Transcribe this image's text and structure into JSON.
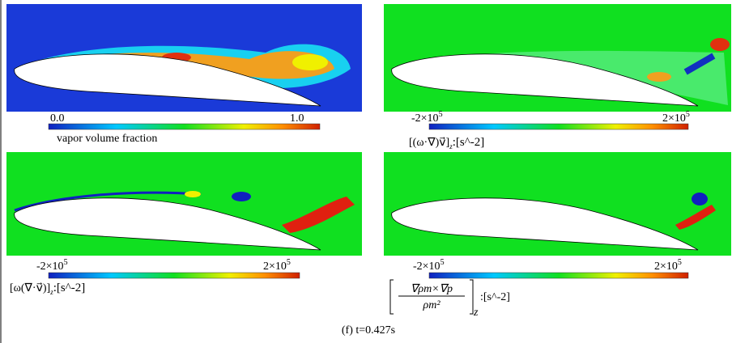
{
  "panels": [
    {
      "colorbar": {
        "min": "0.0",
        "max": "1.0"
      },
      "label": "vapor volume fraction"
    },
    {
      "colorbar": {
        "min": {
          "base": "-2×10",
          "exp": "5"
        },
        "max": {
          "base": "2×10",
          "exp": "5"
        }
      },
      "label": {
        "term": "[(ω·∇)v⃗]",
        "sub": "z",
        "unit": ":[s^-2]"
      }
    },
    {
      "colorbar": {
        "min": {
          "base": "-2×10",
          "exp": "5"
        },
        "max": {
          "base": "2×10",
          "exp": "5"
        }
      },
      "label": {
        "term": "[ω(∇·v⃗)]",
        "sub": "z",
        "unit": ":[s^-2]"
      }
    },
    {
      "colorbar": {
        "min": {
          "base": "-2×10",
          "exp": "5"
        },
        "max": {
          "base": "2×10",
          "exp": "5"
        }
      },
      "label": {
        "numerator": "∇ρm×∇p",
        "denominator": "ρm²",
        "sub": "z",
        "unit": ":[s^-2]"
      }
    }
  ],
  "caption": "(f) t=0.427s"
}
